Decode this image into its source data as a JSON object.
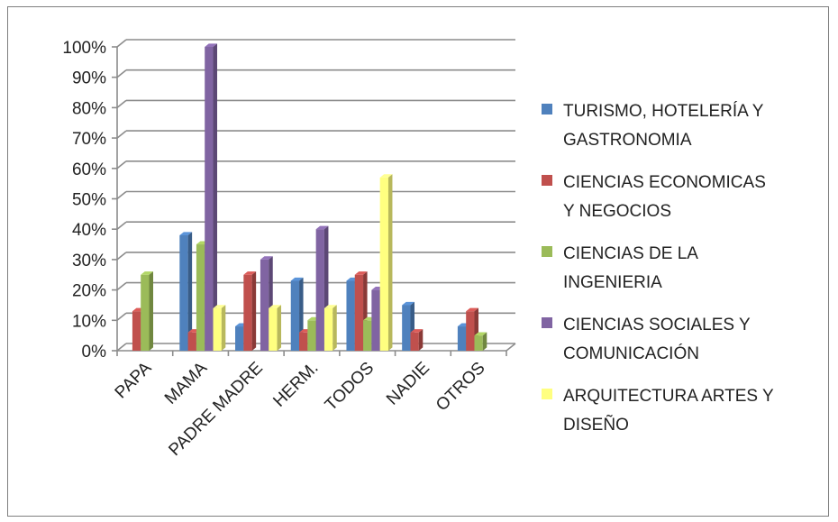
{
  "chart_data": {
    "type": "bar",
    "title": "",
    "xlabel": "",
    "ylabel": "",
    "categories": [
      "PAPA",
      "MAMA",
      "PADRE MADRE",
      "HERM.",
      "TODOS",
      "NADIE",
      "OTROS"
    ],
    "ylim": [
      0,
      100
    ],
    "yticks": [
      "0%",
      "10%",
      "20%",
      "30%",
      "40%",
      "50%",
      "60%",
      "70%",
      "80%",
      "90%",
      "100%"
    ],
    "grid": true,
    "legend_position": "right",
    "series": [
      {
        "name": "TURISMO, HOTELERÍA Y GASTRONOMIA",
        "color": "#4f81bd",
        "values": [
          0,
          38,
          8,
          23,
          23,
          15,
          8
        ]
      },
      {
        "name": "CIENCIAS ECONOMICAS Y NEGOCIOS",
        "color": "#c0504d",
        "values": [
          13,
          6,
          25,
          6,
          25,
          6,
          13
        ]
      },
      {
        "name": "CIENCIAS DE LA INGENIERIA",
        "color": "#9bbb59",
        "values": [
          25,
          35,
          0,
          10,
          10,
          0,
          5
        ]
      },
      {
        "name": "CIENCIAS SOCIALES Y COMUNICACIÓN",
        "color": "#8064a2",
        "values": [
          0,
          100,
          30,
          40,
          20,
          0,
          0
        ]
      },
      {
        "name": "ARQUITECTURA ARTES Y DISEÑO",
        "color": "#ffff80",
        "values": [
          0,
          14,
          14,
          14,
          57,
          0,
          0
        ]
      }
    ],
    "legend_lines": [
      [
        "TURISMO, HOTELERÍA Y",
        "GASTRONOMIA"
      ],
      [
        "CIENCIAS ECONOMICAS",
        "Y NEGOCIOS"
      ],
      [
        "CIENCIAS DE LA",
        "INGENIERIA"
      ],
      [
        "CIENCIAS SOCIALES Y",
        "COMUNICACIÓN"
      ],
      [
        "ARQUITECTURA ARTES Y",
        "DISEÑO"
      ]
    ]
  }
}
